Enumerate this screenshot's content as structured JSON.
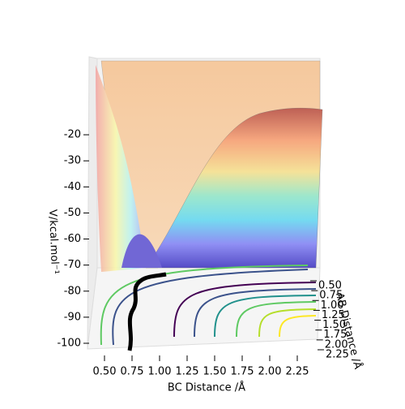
{
  "chart_data": {
    "type": "surface3d",
    "xlabel": "BC Distance /Å",
    "ylabel": "AB Distance /Å",
    "zlabel": "V/kcal.mol⁻¹",
    "xlim": [
      0.5,
      2.25
    ],
    "xticks": [
      {
        "value": 0.5,
        "label": "0.50"
      },
      {
        "value": 0.75,
        "label": "0.75"
      },
      {
        "value": 1.0,
        "label": "1.00"
      },
      {
        "value": 1.25,
        "label": "1.25"
      },
      {
        "value": 1.5,
        "label": "1.50"
      },
      {
        "value": 1.75,
        "label": "1.75"
      },
      {
        "value": 2.0,
        "label": "2.00"
      },
      {
        "value": 2.25,
        "label": "2.25"
      }
    ],
    "ylim": [
      0.5,
      2.25
    ],
    "yticks": [
      {
        "value": 0.5,
        "label": "0.50"
      },
      {
        "value": 0.75,
        "label": "0.75"
      },
      {
        "value": 1.0,
        "label": "1.00"
      },
      {
        "value": 1.25,
        "label": "1.25"
      },
      {
        "value": 1.5,
        "label": "1.50"
      },
      {
        "value": 1.75,
        "label": "1.75"
      },
      {
        "value": 2.0,
        "label": "2.00"
      },
      {
        "value": 2.25,
        "label": "2.25"
      }
    ],
    "zlim": [
      -100,
      -15
    ],
    "zticks": [
      -100,
      -90,
      -80,
      -70,
      -60,
      -50,
      -40,
      -30,
      -20
    ]
  }
}
